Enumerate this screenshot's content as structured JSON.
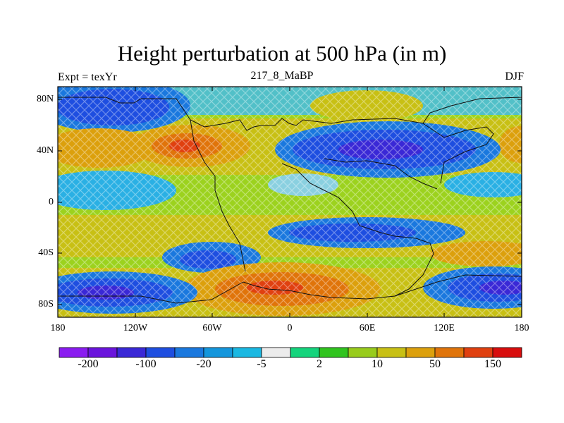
{
  "title": "Height perturbation at 500 hPa (in m)",
  "subtitle_left": "Expt = texYr",
  "subtitle_center": "217_8_MaBP",
  "subtitle_right": "DJF",
  "lat_labels": [
    "80N",
    "40N",
    "0",
    "40S",
    "80S"
  ],
  "lon_labels": [
    "180",
    "120W",
    "60W",
    "0",
    "60E",
    "120E",
    "180"
  ],
  "colorbar": {
    "colors": [
      "#8a1cf0",
      "#6a14dc",
      "#3a28d6",
      "#1e4ee0",
      "#1a78de",
      "#1496dc",
      "#1ab8e2",
      "#ececec",
      "#14d47c",
      "#30c41e",
      "#98cc1c",
      "#c8c014",
      "#dca00c",
      "#e0740a",
      "#e04010",
      "#d80e0e"
    ],
    "labels": [
      "-200",
      "-100",
      "-20",
      "-5",
      "2",
      "10",
      "50",
      "150"
    ]
  }
}
